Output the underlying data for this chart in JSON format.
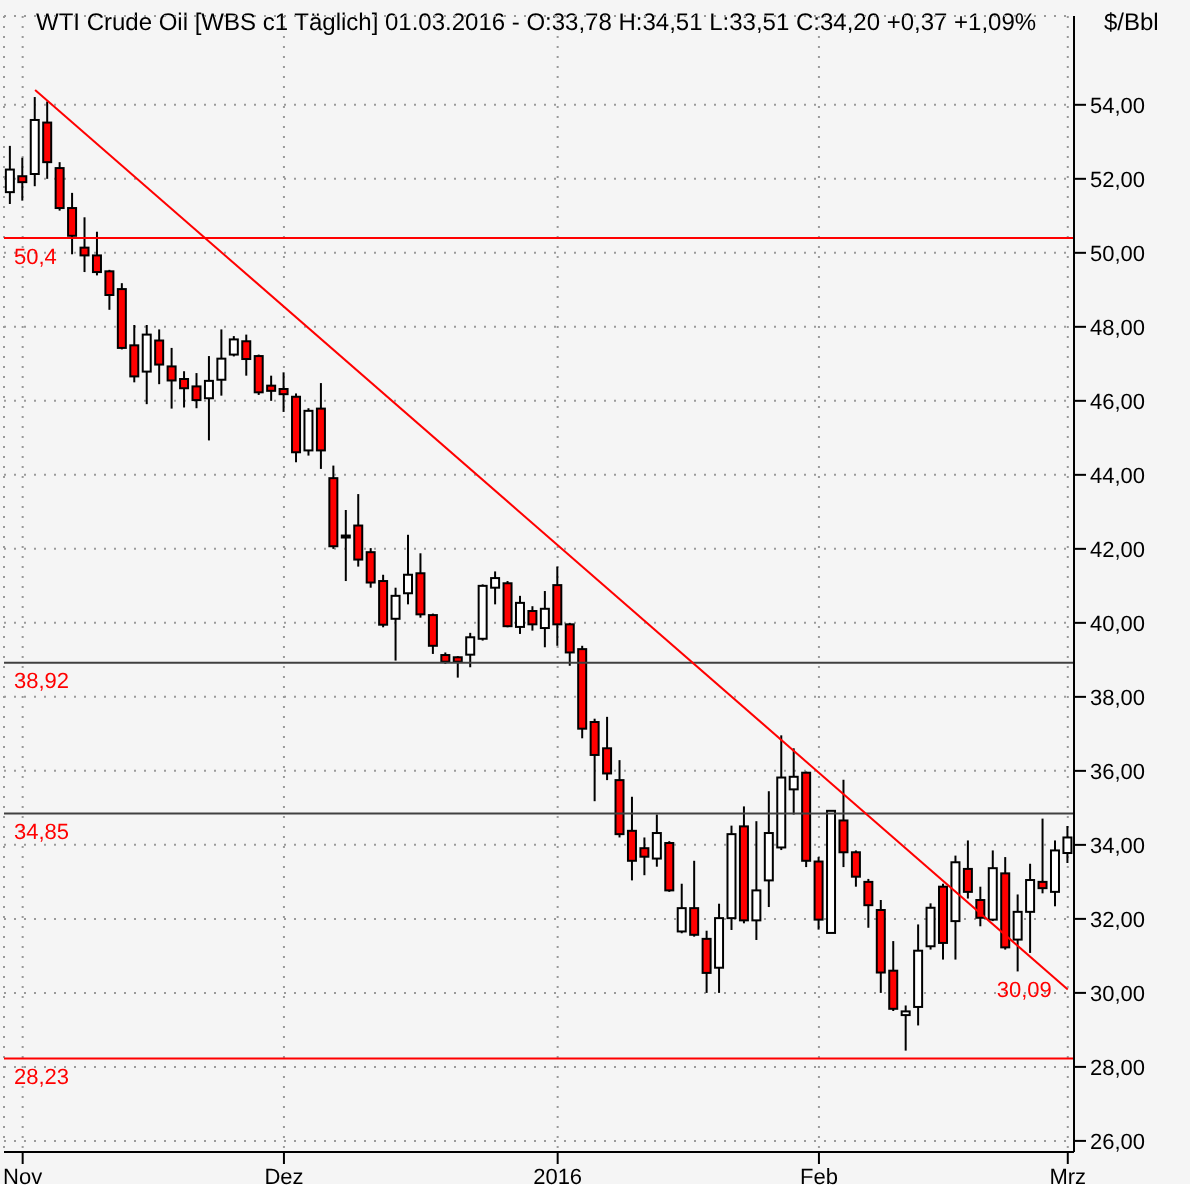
{
  "chart_data": {
    "type": "candlestick",
    "title": "WTI Crude Oil [WBS c1 Täglich] 01.03.2016 - O:33,78 H:34,51 L:33,51 C:34,20 +0,37 +1,09%",
    "ylabel": "$/Bbl",
    "categories": [
      null,
      "Nov",
      null,
      null,
      null,
      null,
      null,
      null,
      null,
      null,
      null,
      null,
      null,
      null,
      null,
      null,
      null,
      null,
      null,
      null,
      null,
      null,
      "Dez",
      null,
      null,
      null,
      null,
      null,
      null,
      null,
      null,
      null,
      null,
      null,
      null,
      null,
      null,
      null,
      null,
      null,
      null,
      null,
      null,
      null,
      "2016",
      null,
      null,
      null,
      null,
      null,
      null,
      null,
      null,
      null,
      null,
      null,
      null,
      null,
      null,
      null,
      null,
      null,
      null,
      null,
      null,
      "Feb",
      null,
      null,
      null,
      null,
      null,
      null,
      null,
      null,
      null,
      null,
      null,
      null,
      null,
      null,
      null,
      null,
      null,
      null,
      null,
      "Mrz"
    ],
    "ohlc": [
      [
        51.64,
        52.89,
        51.32,
        52.25
      ],
      [
        52.07,
        52.57,
        51.41,
        51.91
      ],
      [
        52.13,
        54.21,
        51.8,
        53.59
      ],
      [
        53.52,
        54.09,
        52.0,
        52.45
      ],
      [
        52.29,
        52.45,
        51.14,
        51.21
      ],
      [
        51.21,
        51.62,
        49.96,
        50.46
      ],
      [
        50.14,
        50.96,
        49.48,
        49.93
      ],
      [
        49.93,
        50.57,
        49.39,
        49.48
      ],
      [
        49.5,
        49.54,
        48.46,
        48.86
      ],
      [
        49.02,
        49.18,
        47.39,
        47.43
      ],
      [
        47.5,
        48.05,
        46.5,
        46.66
      ],
      [
        46.79,
        48.05,
        45.91,
        47.79
      ],
      [
        47.63,
        47.93,
        46.45,
        46.98
      ],
      [
        46.93,
        47.43,
        45.79,
        46.55
      ],
      [
        46.59,
        46.8,
        45.82,
        46.34
      ],
      [
        46.39,
        46.75,
        45.8,
        46.02
      ],
      [
        46.07,
        47.21,
        44.93,
        46.54
      ],
      [
        46.57,
        47.93,
        46.14,
        47.14
      ],
      [
        47.25,
        47.75,
        47.2,
        47.66
      ],
      [
        47.61,
        47.79,
        46.68,
        47.13
      ],
      [
        47.21,
        47.25,
        46.16,
        46.23
      ],
      [
        46.41,
        46.68,
        46.0,
        46.27
      ],
      [
        46.32,
        46.77,
        45.7,
        46.18
      ],
      [
        46.11,
        46.2,
        44.34,
        44.61
      ],
      [
        44.66,
        45.8,
        44.52,
        45.73
      ],
      [
        45.79,
        46.48,
        44.16,
        44.66
      ],
      [
        43.91,
        44.25,
        42.0,
        42.07
      ],
      [
        42.36,
        43.05,
        41.13,
        42.32
      ],
      [
        42.63,
        43.48,
        41.52,
        41.71
      ],
      [
        41.91,
        42.02,
        40.95,
        41.09
      ],
      [
        41.13,
        41.3,
        39.88,
        39.95
      ],
      [
        40.11,
        40.95,
        38.98,
        40.73
      ],
      [
        40.8,
        42.38,
        40.5,
        41.3
      ],
      [
        41.34,
        41.88,
        40.14,
        40.23
      ],
      [
        40.21,
        40.25,
        39.16,
        39.38
      ],
      [
        39.13,
        39.2,
        38.89,
        38.95
      ],
      [
        39.07,
        39.1,
        38.52,
        38.95
      ],
      [
        39.14,
        39.73,
        38.8,
        39.61
      ],
      [
        39.57,
        41.04,
        39.52,
        41.0
      ],
      [
        40.95,
        41.39,
        40.5,
        41.21
      ],
      [
        41.07,
        41.13,
        39.88,
        39.91
      ],
      [
        39.89,
        40.73,
        39.7,
        40.54
      ],
      [
        40.32,
        40.45,
        39.79,
        39.96
      ],
      [
        39.86,
        40.86,
        39.34,
        40.38
      ],
      [
        41.02,
        41.52,
        39.38,
        39.96
      ],
      [
        39.96,
        40.0,
        38.84,
        39.2
      ],
      [
        39.29,
        39.38,
        36.88,
        37.14
      ],
      [
        37.32,
        37.41,
        35.18,
        36.43
      ],
      [
        36.61,
        37.46,
        35.75,
        35.93
      ],
      [
        35.75,
        36.29,
        34.2,
        34.29
      ],
      [
        34.38,
        35.3,
        33.04,
        33.57
      ],
      [
        33.91,
        34.2,
        33.18,
        33.68
      ],
      [
        33.63,
        34.82,
        33.41,
        34.32
      ],
      [
        34.05,
        34.1,
        32.73,
        32.77
      ],
      [
        31.66,
        32.95,
        31.61,
        32.29
      ],
      [
        32.29,
        33.57,
        31.52,
        31.57
      ],
      [
        31.46,
        31.68,
        30.0,
        30.54
      ],
      [
        30.68,
        32.41,
        30.0,
        32.02
      ],
      [
        32.02,
        34.52,
        31.7,
        34.29
      ],
      [
        34.5,
        35.04,
        31.88,
        31.96
      ],
      [
        31.96,
        34.64,
        31.43,
        32.77
      ],
      [
        33.04,
        35.45,
        32.32,
        34.32
      ],
      [
        33.93,
        36.96,
        33.86,
        35.82
      ],
      [
        35.5,
        36.61,
        34.82,
        35.84
      ],
      [
        35.95,
        35.98,
        33.4,
        33.57
      ],
      [
        33.55,
        33.67,
        31.71,
        31.98
      ],
      [
        31.62,
        34.92,
        31.62,
        34.92
      ],
      [
        34.66,
        35.76,
        33.4,
        33.8
      ],
      [
        33.8,
        33.85,
        32.87,
        33.14
      ],
      [
        33.0,
        33.08,
        31.76,
        32.37
      ],
      [
        32.24,
        32.51,
        30.0,
        30.55
      ],
      [
        30.6,
        31.4,
        29.51,
        29.57
      ],
      [
        29.4,
        29.66,
        28.44,
        29.5
      ],
      [
        29.62,
        31.85,
        29.12,
        31.14
      ],
      [
        31.26,
        32.42,
        31.17,
        32.3
      ],
      [
        32.87,
        32.95,
        30.9,
        31.35
      ],
      [
        31.94,
        33.71,
        30.9,
        33.53
      ],
      [
        33.35,
        34.12,
        32.55,
        32.73
      ],
      [
        32.51,
        32.87,
        31.8,
        32.03
      ],
      [
        31.98,
        33.85,
        31.94,
        33.37
      ],
      [
        33.23,
        33.67,
        31.17,
        31.23
      ],
      [
        31.44,
        32.66,
        30.58,
        32.19
      ],
      [
        32.19,
        33.49,
        31.08,
        33.05
      ],
      [
        33.0,
        34.71,
        32.69,
        32.83
      ],
      [
        32.73,
        34.12,
        32.34,
        33.85
      ],
      [
        33.78,
        34.51,
        33.51,
        34.2
      ]
    ],
    "series": [
      {
        "type": "line",
        "color": "#ff0000",
        "values": [
          null,
          null,
          54.4,
          null,
          null,
          null,
          null,
          null,
          null,
          null,
          null,
          null,
          null,
          null,
          null,
          null,
          null,
          null,
          null,
          null,
          null,
          null,
          null,
          null,
          null,
          null,
          null,
          null,
          null,
          null,
          null,
          null,
          null,
          null,
          null,
          null,
          null,
          null,
          null,
          null,
          null,
          null,
          null,
          null,
          null,
          null,
          null,
          null,
          null,
          null,
          null,
          null,
          null,
          null,
          null,
          null,
          null,
          null,
          null,
          null,
          null,
          null,
          null,
          null,
          null,
          null,
          null,
          null,
          null,
          null,
          null,
          null,
          null,
          null,
          null,
          null,
          null,
          null,
          null,
          null,
          null,
          null,
          null,
          null,
          null,
          30.09
        ]
      }
    ],
    "ylim": [
      25.7,
      56.4
    ],
    "yticks": [
      {
        "value": 26,
        "label": "26,00"
      },
      {
        "value": 28,
        "label": "28,00"
      },
      {
        "value": 30,
        "label": "30,00"
      },
      {
        "value": 32,
        "label": "32,00"
      },
      {
        "value": 34,
        "label": "34,00"
      },
      {
        "value": 36,
        "label": "36,00"
      },
      {
        "value": 38,
        "label": "38,00"
      },
      {
        "value": 40,
        "label": "40,00"
      },
      {
        "value": 42,
        "label": "42,00"
      },
      {
        "value": 44,
        "label": "44,00"
      },
      {
        "value": 46,
        "label": "46,00"
      },
      {
        "value": 48,
        "label": "48,00"
      },
      {
        "value": 50,
        "label": "50,00"
      },
      {
        "value": 52,
        "label": "52,00"
      },
      {
        "value": 54,
        "label": "54,00"
      }
    ],
    "ref_lines": [
      {
        "axis": "y",
        "value": 50.4,
        "label": "50,4",
        "color": "#ff0000"
      },
      {
        "axis": "y",
        "value": 38.92,
        "label": "38,92",
        "color": "#404040"
      },
      {
        "axis": "y",
        "value": 34.85,
        "label": "34,85",
        "color": "#404040"
      },
      {
        "axis": "y",
        "value": 28.23,
        "label": "28,23",
        "color": "#ff0000"
      }
    ],
    "annotations": [
      "30,09"
    ],
    "grid": true
  }
}
